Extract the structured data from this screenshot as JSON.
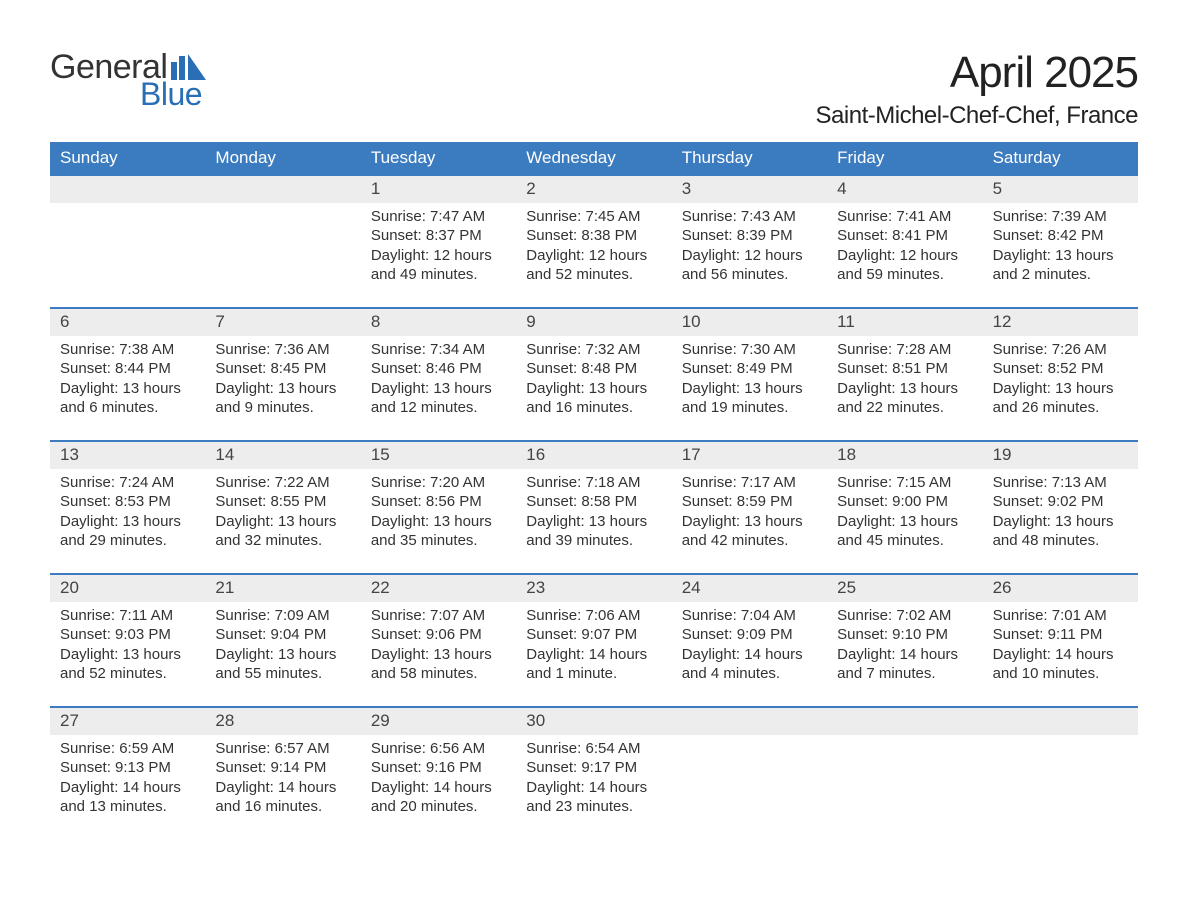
{
  "brand": {
    "name_part1": "General",
    "name_part2": "Blue",
    "accent_color": "#2a6fb5"
  },
  "title": "April 2025",
  "location": "Saint-Michel-Chef-Chef, France",
  "colors": {
    "header_bg": "#3b7bbf",
    "header_text": "#ffffff",
    "band_bg": "#ededed",
    "rule": "#3b7bbf",
    "text": "#333333"
  },
  "days_of_week": [
    "Sunday",
    "Monday",
    "Tuesday",
    "Wednesday",
    "Thursday",
    "Friday",
    "Saturday"
  ],
  "weeks": [
    {
      "days": [
        {
          "num": "",
          "lines": []
        },
        {
          "num": "",
          "lines": []
        },
        {
          "num": "1",
          "lines": [
            "Sunrise: 7:47 AM",
            "Sunset: 8:37 PM",
            "Daylight: 12 hours and 49 minutes."
          ]
        },
        {
          "num": "2",
          "lines": [
            "Sunrise: 7:45 AM",
            "Sunset: 8:38 PM",
            "Daylight: 12 hours and 52 minutes."
          ]
        },
        {
          "num": "3",
          "lines": [
            "Sunrise: 7:43 AM",
            "Sunset: 8:39 PM",
            "Daylight: 12 hours and 56 minutes."
          ]
        },
        {
          "num": "4",
          "lines": [
            "Sunrise: 7:41 AM",
            "Sunset: 8:41 PM",
            "Daylight: 12 hours and 59 minutes."
          ]
        },
        {
          "num": "5",
          "lines": [
            "Sunrise: 7:39 AM",
            "Sunset: 8:42 PM",
            "Daylight: 13 hours and 2 minutes."
          ]
        }
      ]
    },
    {
      "days": [
        {
          "num": "6",
          "lines": [
            "Sunrise: 7:38 AM",
            "Sunset: 8:44 PM",
            "Daylight: 13 hours and 6 minutes."
          ]
        },
        {
          "num": "7",
          "lines": [
            "Sunrise: 7:36 AM",
            "Sunset: 8:45 PM",
            "Daylight: 13 hours and 9 minutes."
          ]
        },
        {
          "num": "8",
          "lines": [
            "Sunrise: 7:34 AM",
            "Sunset: 8:46 PM",
            "Daylight: 13 hours and 12 minutes."
          ]
        },
        {
          "num": "9",
          "lines": [
            "Sunrise: 7:32 AM",
            "Sunset: 8:48 PM",
            "Daylight: 13 hours and 16 minutes."
          ]
        },
        {
          "num": "10",
          "lines": [
            "Sunrise: 7:30 AM",
            "Sunset: 8:49 PM",
            "Daylight: 13 hours and 19 minutes."
          ]
        },
        {
          "num": "11",
          "lines": [
            "Sunrise: 7:28 AM",
            "Sunset: 8:51 PM",
            "Daylight: 13 hours and 22 minutes."
          ]
        },
        {
          "num": "12",
          "lines": [
            "Sunrise: 7:26 AM",
            "Sunset: 8:52 PM",
            "Daylight: 13 hours and 26 minutes."
          ]
        }
      ]
    },
    {
      "days": [
        {
          "num": "13",
          "lines": [
            "Sunrise: 7:24 AM",
            "Sunset: 8:53 PM",
            "Daylight: 13 hours and 29 minutes."
          ]
        },
        {
          "num": "14",
          "lines": [
            "Sunrise: 7:22 AM",
            "Sunset: 8:55 PM",
            "Daylight: 13 hours and 32 minutes."
          ]
        },
        {
          "num": "15",
          "lines": [
            "Sunrise: 7:20 AM",
            "Sunset: 8:56 PM",
            "Daylight: 13 hours and 35 minutes."
          ]
        },
        {
          "num": "16",
          "lines": [
            "Sunrise: 7:18 AM",
            "Sunset: 8:58 PM",
            "Daylight: 13 hours and 39 minutes."
          ]
        },
        {
          "num": "17",
          "lines": [
            "Sunrise: 7:17 AM",
            "Sunset: 8:59 PM",
            "Daylight: 13 hours and 42 minutes."
          ]
        },
        {
          "num": "18",
          "lines": [
            "Sunrise: 7:15 AM",
            "Sunset: 9:00 PM",
            "Daylight: 13 hours and 45 minutes."
          ]
        },
        {
          "num": "19",
          "lines": [
            "Sunrise: 7:13 AM",
            "Sunset: 9:02 PM",
            "Daylight: 13 hours and 48 minutes."
          ]
        }
      ]
    },
    {
      "days": [
        {
          "num": "20",
          "lines": [
            "Sunrise: 7:11 AM",
            "Sunset: 9:03 PM",
            "Daylight: 13 hours and 52 minutes."
          ]
        },
        {
          "num": "21",
          "lines": [
            "Sunrise: 7:09 AM",
            "Sunset: 9:04 PM",
            "Daylight: 13 hours and 55 minutes."
          ]
        },
        {
          "num": "22",
          "lines": [
            "Sunrise: 7:07 AM",
            "Sunset: 9:06 PM",
            "Daylight: 13 hours and 58 minutes."
          ]
        },
        {
          "num": "23",
          "lines": [
            "Sunrise: 7:06 AM",
            "Sunset: 9:07 PM",
            "Daylight: 14 hours and 1 minute."
          ]
        },
        {
          "num": "24",
          "lines": [
            "Sunrise: 7:04 AM",
            "Sunset: 9:09 PM",
            "Daylight: 14 hours and 4 minutes."
          ]
        },
        {
          "num": "25",
          "lines": [
            "Sunrise: 7:02 AM",
            "Sunset: 9:10 PM",
            "Daylight: 14 hours and 7 minutes."
          ]
        },
        {
          "num": "26",
          "lines": [
            "Sunrise: 7:01 AM",
            "Sunset: 9:11 PM",
            "Daylight: 14 hours and 10 minutes."
          ]
        }
      ]
    },
    {
      "days": [
        {
          "num": "27",
          "lines": [
            "Sunrise: 6:59 AM",
            "Sunset: 9:13 PM",
            "Daylight: 14 hours and 13 minutes."
          ]
        },
        {
          "num": "28",
          "lines": [
            "Sunrise: 6:57 AM",
            "Sunset: 9:14 PM",
            "Daylight: 14 hours and 16 minutes."
          ]
        },
        {
          "num": "29",
          "lines": [
            "Sunrise: 6:56 AM",
            "Sunset: 9:16 PM",
            "Daylight: 14 hours and 20 minutes."
          ]
        },
        {
          "num": "30",
          "lines": [
            "Sunrise: 6:54 AM",
            "Sunset: 9:17 PM",
            "Daylight: 14 hours and 23 minutes."
          ]
        },
        {
          "num": "",
          "lines": []
        },
        {
          "num": "",
          "lines": []
        },
        {
          "num": "",
          "lines": []
        }
      ]
    }
  ]
}
